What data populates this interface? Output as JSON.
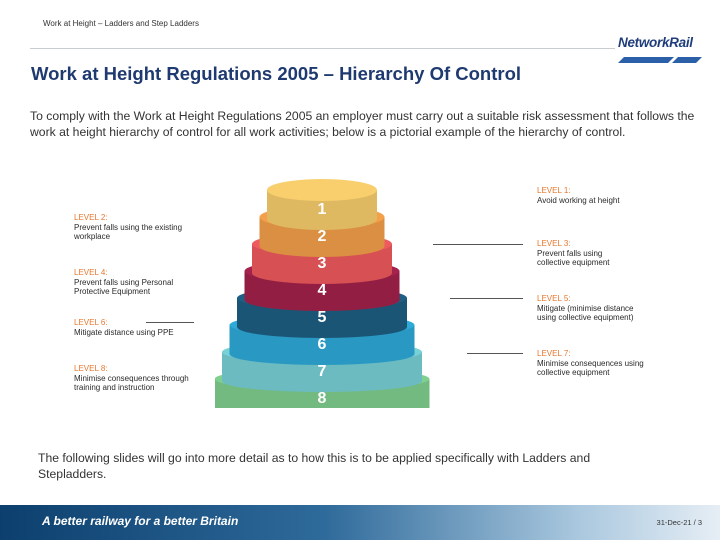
{
  "header": {
    "course_title": "Work at Height – Ladders and Step Ladders",
    "logo_text": "NetworkRail"
  },
  "slide": {
    "title": "Work at Height Regulations 2005 – Hierarchy Of Control",
    "intro": "To comply with the Work at Height Regulations 2005 an employer must carry out a suitable risk assessment that follows the work at height hierarchy of control for all work activities; below is a pictorial example of the hierarchy of control.",
    "footnote": "The following slides will go into more detail as to how this is to be applied specifically with Ladders and Stepladders."
  },
  "pyramid": {
    "tiers": [
      {
        "number": "1",
        "color": "#f9cf6e"
      },
      {
        "number": "2",
        "color": "#f4a04a"
      },
      {
        "number": "3",
        "color": "#ef5a5e"
      },
      {
        "number": "4",
        "color": "#a4224b"
      },
      {
        "number": "5",
        "color": "#1f5f84"
      },
      {
        "number": "6",
        "color": "#2eaad9"
      },
      {
        "number": "7",
        "color": "#78d1d6"
      },
      {
        "number": "8",
        "color": "#7fd08f"
      }
    ]
  },
  "levels": {
    "l1": {
      "level": "LEVEL 1:",
      "text": "Avoid working at height"
    },
    "l2": {
      "level": "LEVEL 2:",
      "text": "Prevent falls using the existing workplace"
    },
    "l3": {
      "level": "LEVEL 3:",
      "text": "Prevent falls using collective equipment"
    },
    "l4": {
      "level": "LEVEL 4:",
      "text": "Prevent falls using Personal Protective Equipment"
    },
    "l5": {
      "level": "LEVEL 5:",
      "text": "Mitigate (minimise distance using collective equipment)"
    },
    "l6": {
      "level": "LEVEL 6:",
      "text": "Mitigate distance using PPE"
    },
    "l7": {
      "level": "LEVEL 7:",
      "text": "Minimise consequences using collective equipment"
    },
    "l8": {
      "level": "LEVEL 8:",
      "text": "Minimise consequences through training and instruction"
    }
  },
  "footer": {
    "slogan": "A better railway for a better Britain",
    "date_page": "31-Dec-21 / 3"
  }
}
